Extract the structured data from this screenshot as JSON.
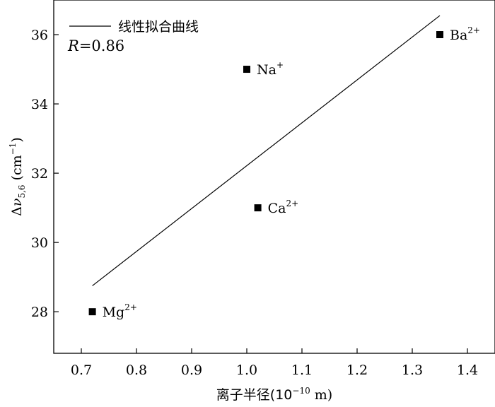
{
  "chart_data": {
    "type": "scatter",
    "xlabel_prefix": "离子半径(10",
    "xlabel_exp": "−10",
    "xlabel_suffix": " m)",
    "ylabel_base": "Δ",
    "ylabel_var": "ν",
    "ylabel_sub": "5,6",
    "ylabel_unit_open": " (cm",
    "ylabel_unit_exp": "−1",
    "ylabel_unit_close": ")",
    "xlim": [
      0.65,
      1.45
    ],
    "ylim": [
      26.8,
      37.0
    ],
    "xticks": [
      0.7,
      0.8,
      0.9,
      1.0,
      1.1,
      1.2,
      1.3,
      1.4
    ],
    "xtick_labels": [
      "0.7",
      "0.8",
      "0.9",
      "1.0",
      "1.1",
      "1.2",
      "1.3",
      "1.4"
    ],
    "yticks": [
      28,
      30,
      32,
      34,
      36
    ],
    "ytick_labels": [
      "28",
      "30",
      "32",
      "34",
      "36"
    ],
    "points": [
      {
        "x": 0.72,
        "y": 28,
        "label": "Mg",
        "charge": "2+"
      },
      {
        "x": 1.0,
        "y": 35,
        "label": "Na",
        "charge": "+"
      },
      {
        "x": 1.02,
        "y": 31,
        "label": "Ca",
        "charge": "2+"
      },
      {
        "x": 1.35,
        "y": 36,
        "label": "Ba",
        "charge": "2+"
      }
    ],
    "fit_line": {
      "x": [
        0.72,
        1.35
      ],
      "y": [
        28.75,
        36.55
      ]
    },
    "legend": {
      "line_label": "线性拟合曲线",
      "r_var": "R",
      "r_text": "=0.86",
      "position": "top-left"
    },
    "grid": false
  }
}
